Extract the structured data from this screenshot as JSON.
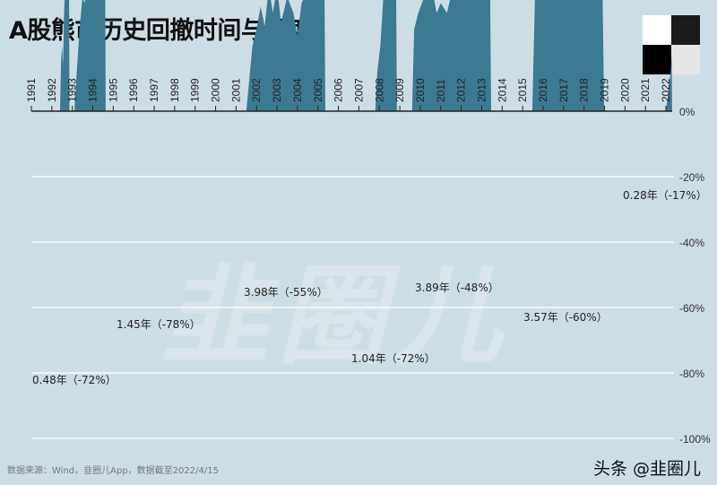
{
  "title": "A股熊市历史回撤时间与幅度",
  "source": "数据来源：Wind，韭圈儿App，数据截至2022/4/15",
  "brand": "头条 @韭圈儿",
  "watermark": "韭圈儿",
  "chart_data": {
    "type": "area",
    "title": "A股熊市历史回撤时间与幅度",
    "x_ticks": [
      "1991",
      "1992",
      "1993",
      "1994",
      "1995",
      "1996",
      "1997",
      "1998",
      "1999",
      "2000",
      "2001",
      "2002",
      "2003",
      "2004",
      "2005",
      "2006",
      "2007",
      "2008",
      "2009",
      "2010",
      "2011",
      "2012",
      "2013",
      "2014",
      "2015",
      "2016",
      "2017",
      "2018",
      "2019",
      "2020",
      "2021",
      "2022"
    ],
    "y_ticks": [
      "0%",
      "-20%",
      "-40%",
      "-60%",
      "-80%",
      "-100%"
    ],
    "ylim": [
      -100,
      0
    ],
    "xlim": [
      1991,
      2022.4
    ],
    "grid": true,
    "fill_color": "#3b7a90",
    "episodes": [
      {
        "label": "0.48年（-72%）",
        "points": [
          [
            1992.4,
            0
          ],
          [
            1992.45,
            -15
          ],
          [
            1992.5,
            -20
          ],
          [
            1992.55,
            -14
          ],
          [
            1992.6,
            -30
          ],
          [
            1992.7,
            -45
          ],
          [
            1992.78,
            -60
          ],
          [
            1992.82,
            -72
          ],
          [
            1992.86,
            0
          ]
        ]
      },
      {
        "label": "1.45年（-78%）",
        "points": [
          [
            1993.1,
            0
          ],
          [
            1993.2,
            -10
          ],
          [
            1993.35,
            -25
          ],
          [
            1993.5,
            -35
          ],
          [
            1993.6,
            -33
          ],
          [
            1993.75,
            -40
          ],
          [
            1993.9,
            -38
          ],
          [
            1994.0,
            -48
          ],
          [
            1994.2,
            -55
          ],
          [
            1994.35,
            -65
          ],
          [
            1994.5,
            -74
          ],
          [
            1994.58,
            -78
          ],
          [
            1994.63,
            0
          ]
        ]
      },
      {
        "label": "3.98年（-55%）",
        "points": [
          [
            2001.5,
            0
          ],
          [
            2001.8,
            -20
          ],
          [
            2002.0,
            -25
          ],
          [
            2002.2,
            -32
          ],
          [
            2002.4,
            -26
          ],
          [
            2002.6,
            -38
          ],
          [
            2002.8,
            -30
          ],
          [
            2003.0,
            -38
          ],
          [
            2003.2,
            -27
          ],
          [
            2003.5,
            -35
          ],
          [
            2003.8,
            -30
          ],
          [
            2004.0,
            -23
          ],
          [
            2004.2,
            -33
          ],
          [
            2004.5,
            -37
          ],
          [
            2004.8,
            -42
          ],
          [
            2005.1,
            -48
          ],
          [
            2005.3,
            -55
          ],
          [
            2005.36,
            0
          ]
        ]
      },
      {
        "label": "1.04年（-72%）",
        "points": [
          [
            2007.8,
            0
          ],
          [
            2007.9,
            -12
          ],
          [
            2008.05,
            -20
          ],
          [
            2008.2,
            -35
          ],
          [
            2008.35,
            -40
          ],
          [
            2008.5,
            -45
          ],
          [
            2008.65,
            -60
          ],
          [
            2008.78,
            -72
          ],
          [
            2008.86,
            0
          ]
        ]
      },
      {
        "label": "3.89年（-48%）",
        "points": [
          [
            2009.6,
            0
          ],
          [
            2009.7,
            -25
          ],
          [
            2009.9,
            -30
          ],
          [
            2010.2,
            -35
          ],
          [
            2010.5,
            -40
          ],
          [
            2010.8,
            -30
          ],
          [
            2011.0,
            -33
          ],
          [
            2011.3,
            -30
          ],
          [
            2011.6,
            -38
          ],
          [
            2011.9,
            -42
          ],
          [
            2012.2,
            -38
          ],
          [
            2012.5,
            -44
          ],
          [
            2012.8,
            -46
          ],
          [
            2013.0,
            -42
          ],
          [
            2013.2,
            -48
          ],
          [
            2013.4,
            -44
          ],
          [
            2013.46,
            0
          ]
        ]
      },
      {
        "label": "3.57年（-60%）",
        "points": [
          [
            2015.47,
            0
          ],
          [
            2015.6,
            -35
          ],
          [
            2015.8,
            -47
          ],
          [
            2016.0,
            -55
          ],
          [
            2016.3,
            -48
          ],
          [
            2016.6,
            -52
          ],
          [
            2016.9,
            -48
          ],
          [
            2017.2,
            -46
          ],
          [
            2017.5,
            -45
          ],
          [
            2017.8,
            -44
          ],
          [
            2018.0,
            -42
          ],
          [
            2018.3,
            -48
          ],
          [
            2018.6,
            -54
          ],
          [
            2018.85,
            -60
          ],
          [
            2018.98,
            0
          ]
        ]
      },
      {
        "label": "0.28年（-17%）",
        "points": [
          [
            2022.0,
            0
          ],
          [
            2022.1,
            -5
          ],
          [
            2022.2,
            -10
          ],
          [
            2022.28,
            -17
          ],
          [
            2022.3,
            0
          ]
        ]
      }
    ]
  }
}
